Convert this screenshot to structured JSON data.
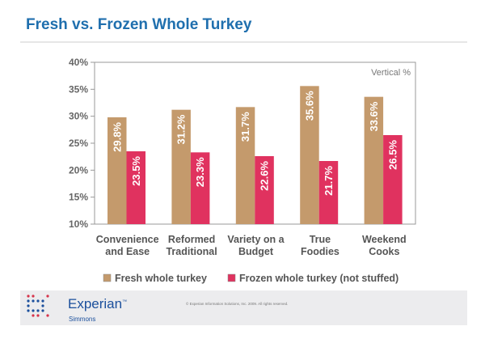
{
  "chart_data": {
    "type": "bar",
    "title": "Fresh vs. Frozen Whole Turkey",
    "annotation": "Vertical %",
    "categories": [
      [
        "Convenience",
        "and Ease"
      ],
      [
        "Reformed",
        "Traditional"
      ],
      [
        "Variety on a",
        "Budget"
      ],
      [
        "True",
        "Foodies"
      ],
      [
        "Weekend",
        "Cooks"
      ]
    ],
    "series": [
      {
        "name": "Fresh whole turkey",
        "color": "#c49a6c",
        "values": [
          29.8,
          31.2,
          31.7,
          35.6,
          33.6
        ],
        "labels": [
          "29.8%",
          "31.2%",
          "31.7%",
          "35.6%",
          "33.6%"
        ]
      },
      {
        "name": "Frozen whole turkey (not stuffed)",
        "color": "#e0325f",
        "values": [
          23.5,
          23.3,
          22.6,
          21.7,
          26.5
        ],
        "labels": [
          "23.5%",
          "23.3%",
          "22.6%",
          "21.7%",
          "26.5%"
        ]
      }
    ],
    "ylim": [
      10,
      40
    ],
    "yticks": [
      10,
      15,
      20,
      25,
      30,
      35,
      40
    ],
    "ytick_labels": [
      "10%",
      "15%",
      "20%",
      "25%",
      "30%",
      "35%",
      "40%"
    ],
    "legend": "bottom"
  },
  "footer": {
    "brand": "Experian",
    "brand_tm": "™",
    "sub": "Simmons",
    "copyright": "© Experian Information Solutions, Inc. 2009.  All rights reserved."
  }
}
